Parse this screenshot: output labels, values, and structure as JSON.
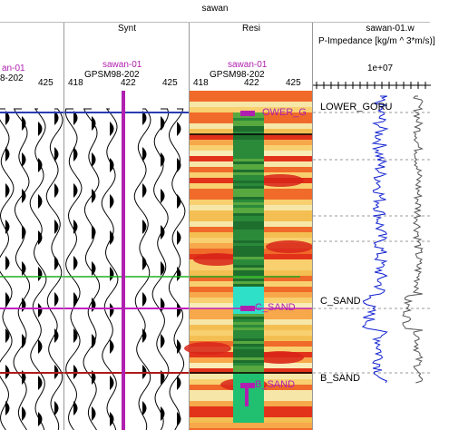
{
  "window": {
    "title": "sawan"
  },
  "panels": {
    "seismic": {
      "well": "an-01",
      "project": "8-202",
      "ticks": [
        "425"
      ]
    },
    "synt": {
      "title": "Synt",
      "well": "sawan-01",
      "project": "GPSM98-202",
      "ticks": [
        "418",
        "422",
        "425"
      ]
    },
    "resi": {
      "title": "Resi",
      "well": "sawan-01",
      "project": "GPSM98-202",
      "ticks": [
        "418",
        "422",
        "425"
      ]
    },
    "log": {
      "title": "sawan-01.w",
      "subtitle": "P-Impedance [kg/m ^ 3*m/s)]",
      "scale": "1e+07"
    }
  },
  "horizons": {
    "lower_goru": "LOWER_GORU",
    "lower_goru_marker": "OWER_G",
    "c_sand": "C_SAND",
    "c_sand_marker": "C_SAND",
    "b_sand": "B_SAND",
    "b_sand_marker": "B_SAND"
  },
  "colors": {
    "well": "#b020b0",
    "blue_horizon": "#2a3cb0",
    "green_horizon": "#20b020",
    "magenta_horizon": "#c020c0",
    "red_horizon": "#b01818",
    "impedance": "#1020d0",
    "second_log": "#555555"
  }
}
